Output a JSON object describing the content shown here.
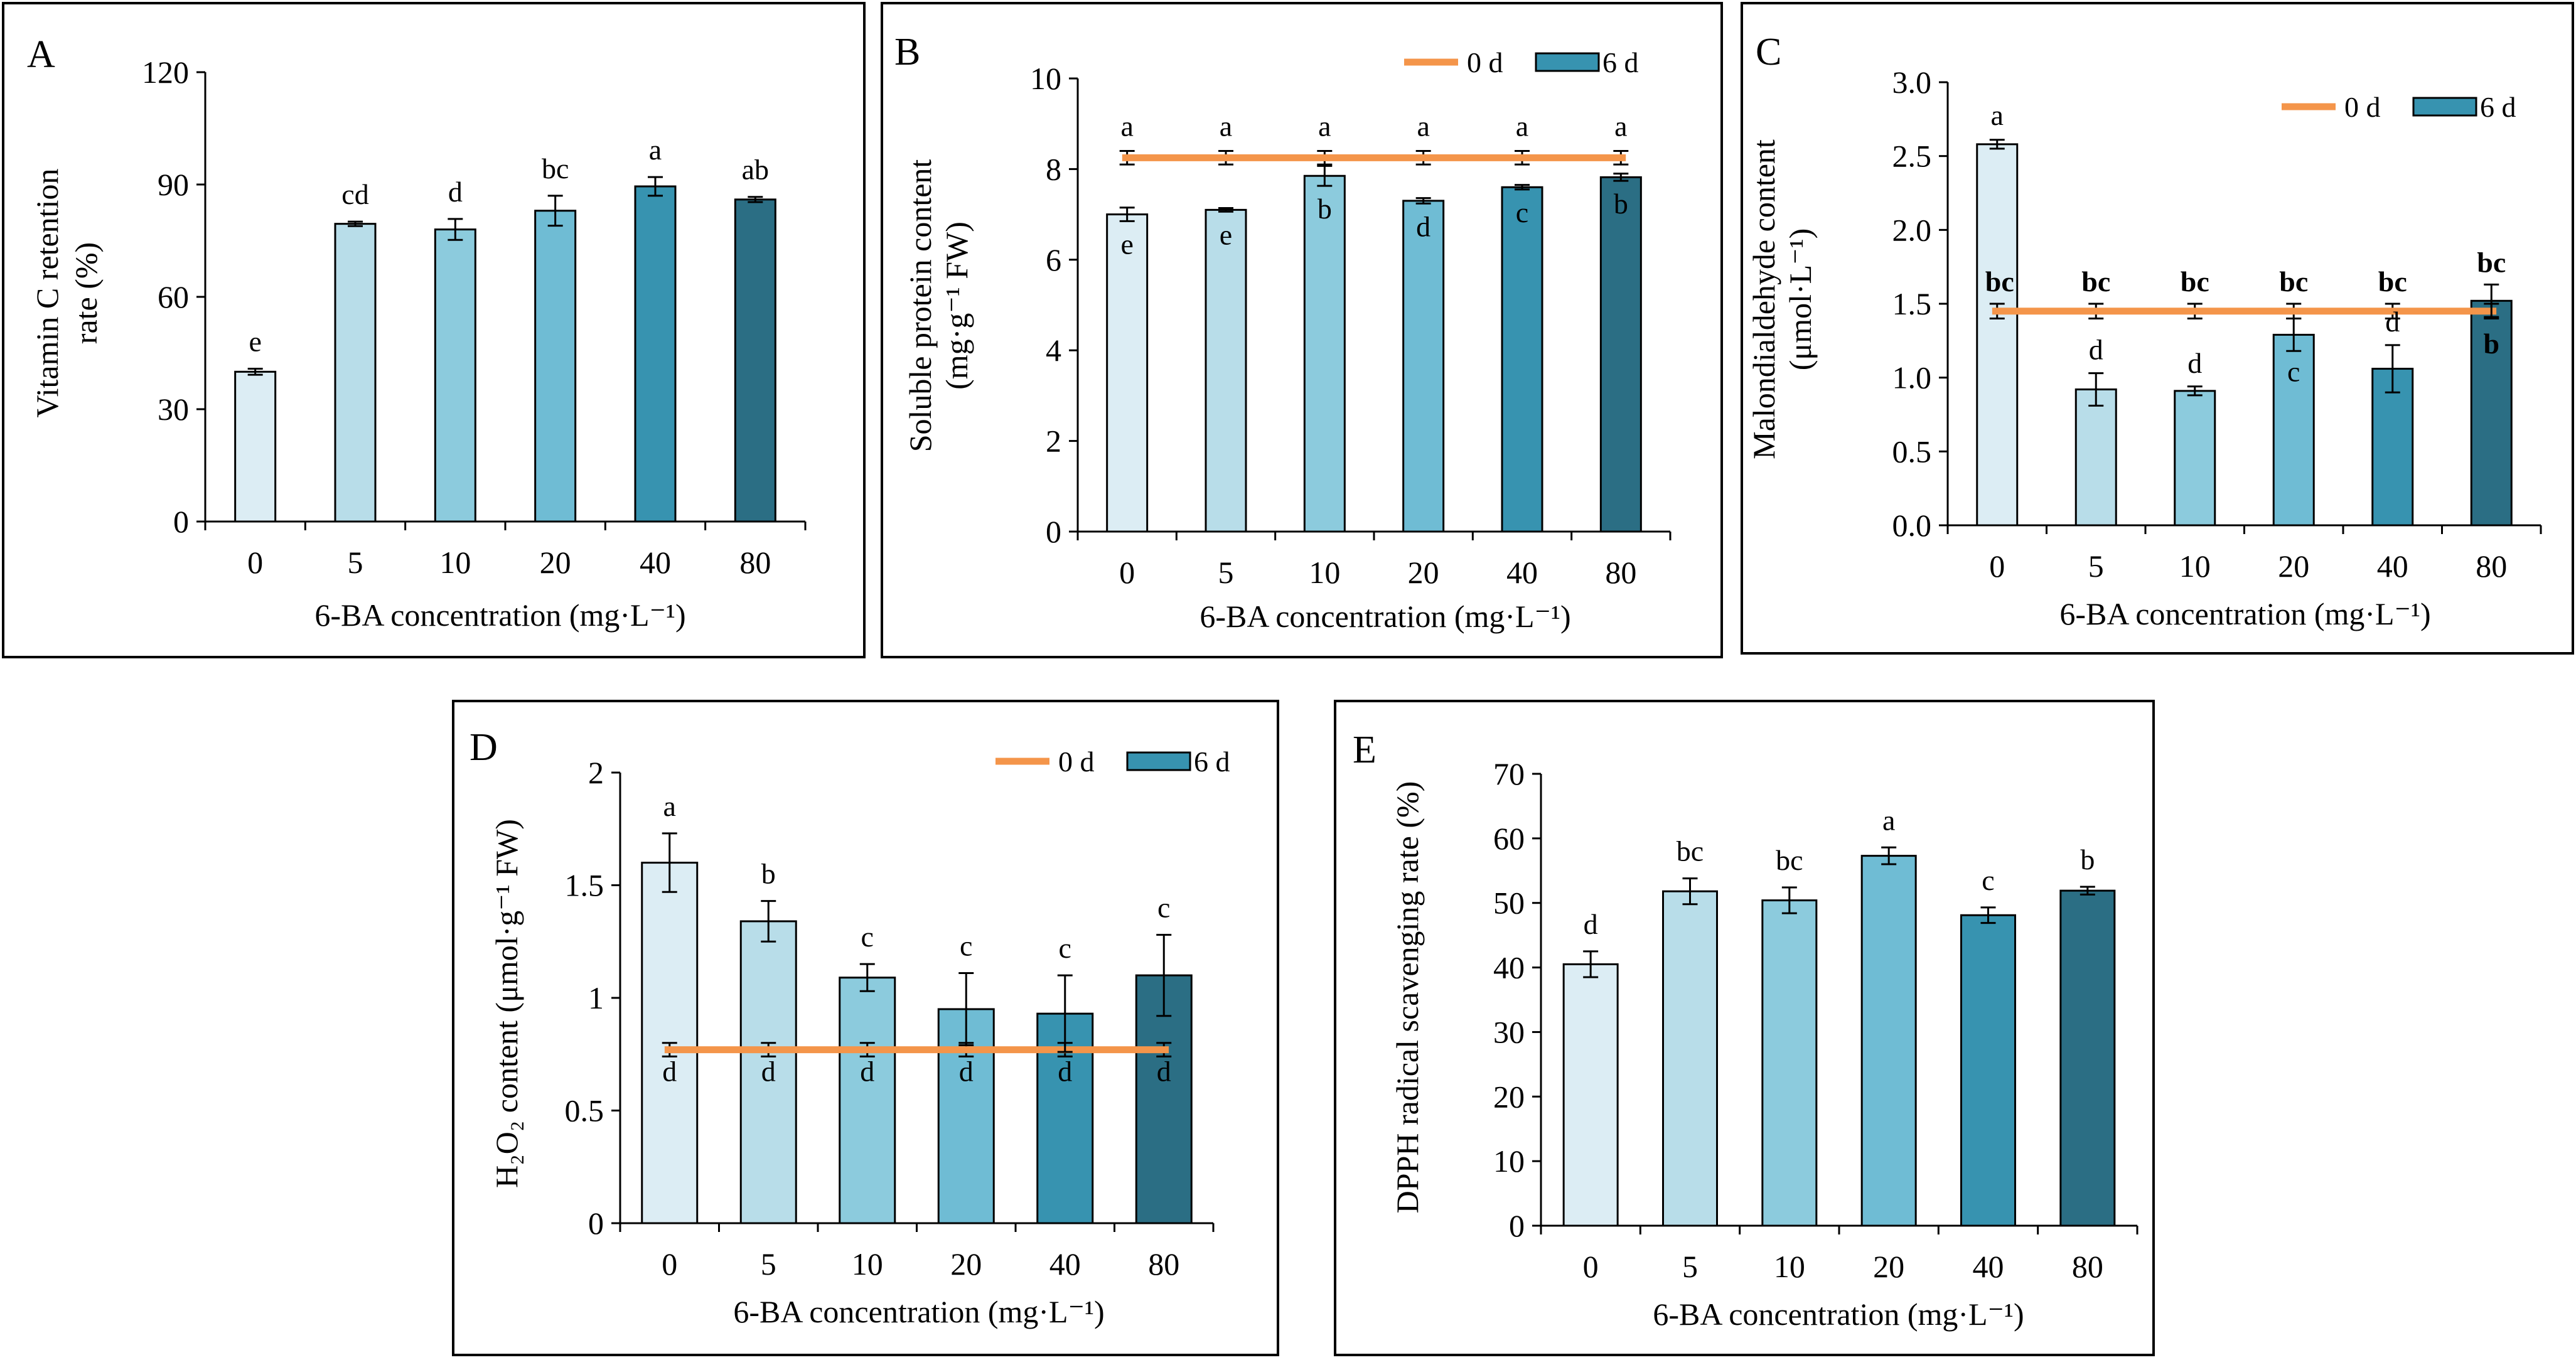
{
  "colors": {
    "bars": [
      "#dcedf4",
      "#b8dde9",
      "#8ccbdd",
      "#6fbcd4",
      "#3793b0",
      "#2b6e84"
    ],
    "bar_stroke": "#000000",
    "initial_line": "#f4954a",
    "legend_swatch": "#3793b0"
  },
  "legend": {
    "line_label": "0 d",
    "bar_label": "6 d"
  },
  "chart_data": [
    {
      "id": "A",
      "panel_label": "A",
      "type": "bar",
      "title": "",
      "xlabel": "6-BA concentration (mg·L⁻¹)",
      "ylabel_lines": [
        "Vitamin C retention",
        "rate (%)"
      ],
      "categories": [
        "0",
        "5",
        "10",
        "20",
        "40",
        "80"
      ],
      "values": [
        40,
        79.5,
        78,
        83,
        89.5,
        86
      ],
      "errors": [
        0.8,
        0.6,
        2.8,
        4,
        2.5,
        0.7
      ],
      "letters": [
        "e",
        "cd",
        "d",
        "bc",
        "a",
        "ab"
      ],
      "letters_bold": false,
      "inside_letters": null,
      "ylim": [
        0,
        120
      ],
      "yticks": [
        "0",
        "30",
        "60",
        "90",
        "120"
      ],
      "initial": null,
      "legend": false
    },
    {
      "id": "B",
      "panel_label": "B",
      "type": "bar",
      "title": "",
      "xlabel": "6-BA concentration (mg·L⁻¹)",
      "ylabel_lines": [
        "Soluble protein content",
        "(mg·g⁻¹ FW)"
      ],
      "categories": [
        "0",
        "5",
        "10",
        "20",
        "40",
        "80"
      ],
      "values": [
        7.0,
        7.1,
        7.85,
        7.3,
        7.6,
        7.82
      ],
      "errors": [
        0.15,
        0.04,
        0.22,
        0.06,
        0.05,
        0.08
      ],
      "letters": [
        "a",
        "a",
        "a",
        "a",
        "a",
        "a"
      ],
      "letters_bold": false,
      "inside_letters": [
        "e",
        "e",
        "b",
        "d",
        "c",
        "b"
      ],
      "inside_bold": false,
      "ylim": [
        0,
        10
      ],
      "yticks": [
        "0",
        "2",
        "4",
        "6",
        "8",
        "10"
      ],
      "initial": {
        "value": 8.25,
        "error": 0.15
      },
      "legend": true
    },
    {
      "id": "C",
      "panel_label": "C",
      "type": "bar",
      "title": "",
      "xlabel": "6-BA concentration (mg·L⁻¹)",
      "ylabel_lines": [
        "Malondialdehyde content",
        "(μmol·L⁻¹)"
      ],
      "categories": [
        "0",
        "5",
        "10",
        "20",
        "40",
        "80"
      ],
      "values": [
        2.58,
        0.92,
        0.91,
        1.29,
        1.06,
        1.52
      ],
      "errors": [
        0.03,
        0.11,
        0.03,
        0.11,
        0.16,
        0.11
      ],
      "letters": [
        "a",
        "d",
        "d",
        "c",
        "d",
        "b"
      ],
      "letters_bold": false,
      "inside_letters": null,
      "initial_letters": [
        "bc",
        "bc",
        "bc",
        "bc",
        "bc",
        "bc"
      ],
      "ylim": [
        0,
        3.0
      ],
      "yticks": [
        "0.0",
        "0.5",
        "1.0",
        "1.5",
        "2.0",
        "2.5",
        "3.0"
      ],
      "initial": {
        "value": 1.45,
        "error": 0.05
      },
      "legend": true
    },
    {
      "id": "D",
      "panel_label": "D",
      "type": "bar",
      "title": "",
      "xlabel": "6-BA concentration (mg·L⁻¹)",
      "ylabel_lines": [
        "H₂O₂ content (μmol·g⁻¹ FW)"
      ],
      "categories": [
        "0",
        "5",
        "10",
        "20",
        "40",
        "80"
      ],
      "values": [
        1.6,
        1.34,
        1.09,
        0.95,
        0.93,
        1.1
      ],
      "errors": [
        0.13,
        0.09,
        0.06,
        0.16,
        0.17,
        0.18
      ],
      "letters": [
        "a",
        "b",
        "c",
        "c",
        "c",
        "c"
      ],
      "letters_bold": false,
      "inside_letters": [
        "d",
        "d",
        "d",
        "d",
        "d",
        "d"
      ],
      "inside_bold": false,
      "ylim": [
        0,
        2
      ],
      "yticks": [
        "0",
        "0.5",
        "1",
        "1.5",
        "2"
      ],
      "initial": {
        "value": 0.77,
        "error": 0.03
      },
      "legend": true
    },
    {
      "id": "E",
      "panel_label": "E",
      "type": "bar",
      "title": "",
      "xlabel": "6-BA concentration (mg·L⁻¹)",
      "ylabel_lines": [
        "DPPH radical scavenging rate (%)"
      ],
      "categories": [
        "0",
        "5",
        "10",
        "20",
        "40",
        "80"
      ],
      "values": [
        40.5,
        51.8,
        50.4,
        57.3,
        48.1,
        51.9
      ],
      "errors": [
        2.0,
        2.0,
        2.0,
        1.3,
        1.2,
        0.6
      ],
      "letters": [
        "d",
        "bc",
        "bc",
        "a",
        "c",
        "b"
      ],
      "letters_bold": false,
      "inside_letters": null,
      "ylim": [
        0,
        70
      ],
      "yticks": [
        "0",
        "10",
        "20",
        "30",
        "40",
        "50",
        "60",
        "70"
      ],
      "initial": null,
      "legend": false
    }
  ]
}
